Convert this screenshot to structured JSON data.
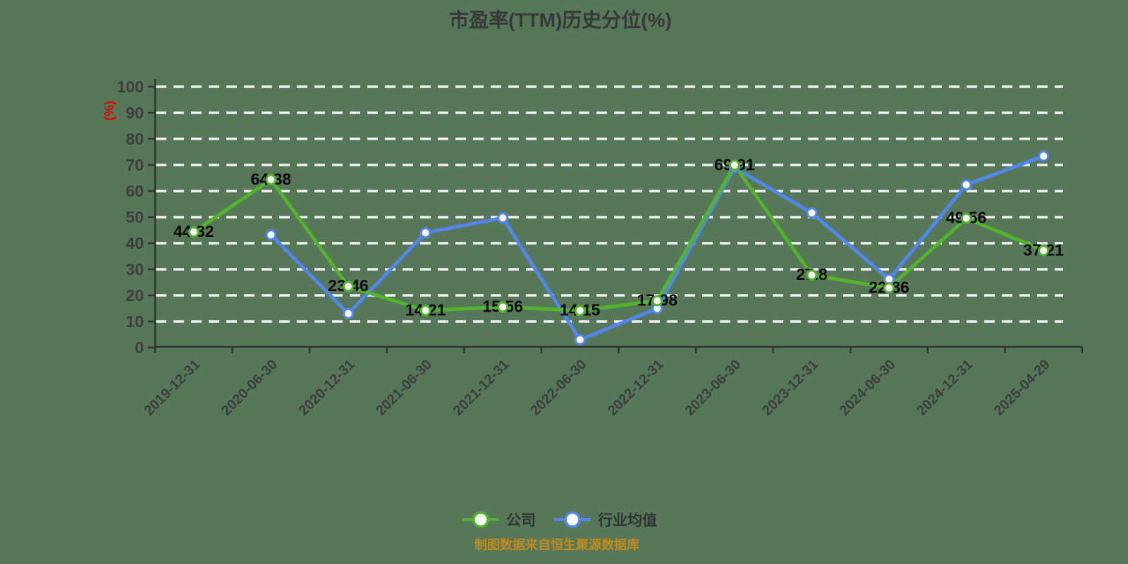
{
  "title": "市盈率(TTM)历史分位(%)",
  "footer": "制图数据来自恒生聚源数据库",
  "legend": {
    "items": [
      {
        "label": "公司"
      },
      {
        "label": "行业均值"
      }
    ]
  },
  "chart_data": {
    "type": "line",
    "title": "市盈率(TTM)历史分位(%)",
    "xlabel": "",
    "ylabel": "(%)",
    "ylim": [
      0,
      100
    ],
    "y_tick_step": 10,
    "grid": "horizontal white dashed lines",
    "legend_position": "bottom-center",
    "x_label_rotation": -45,
    "categories": [
      "2019-12-31",
      "2020-06-30",
      "2020-12-31",
      "2021-06-30",
      "2021-12-31",
      "2022-06-30",
      "2022-12-31",
      "2023-06-30",
      "2023-12-31",
      "2024-06-30",
      "2024-12-31",
      "2025-04-29"
    ],
    "series": [
      {
        "name": "公司",
        "slug": "company",
        "color": "#53b32b",
        "marker": "white-filled-circle",
        "show_point_labels": true,
        "values": [
          44.32,
          64.38,
          23.46,
          14.21,
          15.56,
          14.15,
          17.98,
          69.91,
          27.8,
          22.86,
          49.56,
          37.21
        ]
      },
      {
        "name": "行业均值",
        "slug": "industry-average",
        "color": "#5286ec",
        "marker": "white-filled-circle",
        "show_point_labels": false,
        "values_are_estimates": true,
        "values": [
          null,
          43.2,
          13.0,
          44.0,
          49.7,
          3.0,
          15.0,
          69.0,
          51.6,
          26.2,
          62.4,
          73.4
        ]
      }
    ]
  },
  "colors": {
    "background": "#567858",
    "grid": "#f1f1f1",
    "axis": "#333333",
    "tick_label": "#3d3d3d",
    "point_label": "#0a0a0a",
    "y_axis_unit": "#e60000",
    "title": "#383838",
    "legend_text": "#333333",
    "footer": "#bf8b1e",
    "marker_fill": "#ffffff"
  }
}
